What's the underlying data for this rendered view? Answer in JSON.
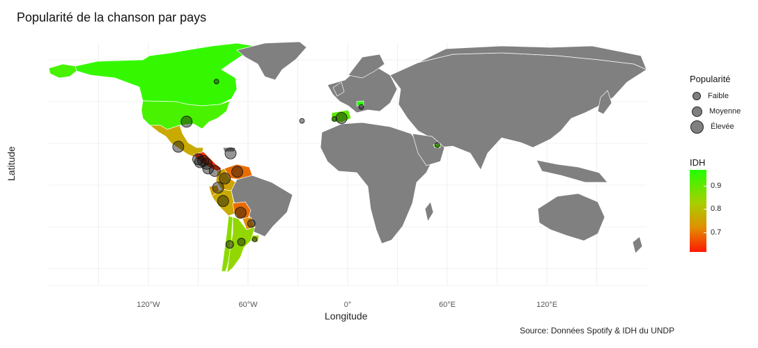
{
  "title": "Popularité de la chanson par pays",
  "x_axis_label": "Longitude",
  "y_axis_label": "Latitude",
  "caption": "Source: Données Spotify & IDH du UNDP",
  "legend_popularity": {
    "title": "Popularité",
    "items": [
      "Faible",
      "Moyenne",
      "Élevée"
    ]
  },
  "legend_idh": {
    "title": "IDH",
    "ticks": [
      "0.9",
      "0.8",
      "0.7"
    ]
  },
  "colors": {
    "land_gray": "#808080",
    "idh_high": "#22ff00",
    "idh_mid": "#a6d000",
    "idh_low": "#ff1800"
  },
  "chart_data": {
    "type": "map",
    "x_ticks": [
      "120°W",
      "60°W",
      "0°",
      "60°E",
      "120°E"
    ],
    "x_tick_values": [
      -120,
      -60,
      0,
      60,
      120
    ],
    "xlim": [
      -180,
      180
    ],
    "ylim": [
      -60,
      85
    ],
    "grid": true,
    "countries": [
      {
        "name": "Canada",
        "idh": 0.94
      },
      {
        "name": "United States",
        "idh": 0.92
      },
      {
        "name": "Mexico",
        "idh": 0.76
      },
      {
        "name": "Guatemala",
        "idh": 0.64
      },
      {
        "name": "Honduras",
        "idh": 0.63
      },
      {
        "name": "Nicaragua",
        "idh": 0.66
      },
      {
        "name": "Costa Rica",
        "idh": 0.81
      },
      {
        "name": "Panama",
        "idh": 0.82
      },
      {
        "name": "Colombia",
        "idh": 0.75
      },
      {
        "name": "Venezuela",
        "idh": 0.69
      },
      {
        "name": "Ecuador",
        "idh": 0.74
      },
      {
        "name": "Peru",
        "idh": 0.76
      },
      {
        "name": "Bolivia",
        "idh": 0.69
      },
      {
        "name": "Paraguay",
        "idh": 0.72
      },
      {
        "name": "Uruguay",
        "idh": 0.83
      },
      {
        "name": "Chile",
        "idh": 0.85
      },
      {
        "name": "Argentina",
        "idh": 0.84
      },
      {
        "name": "Spain",
        "idh": 0.9
      },
      {
        "name": "Switzerland",
        "idh": 0.96
      },
      {
        "name": "United Arab Emirates",
        "idh": 0.91
      }
    ],
    "points": [
      {
        "lon": -97,
        "lat": 38,
        "popularity": "Élevée"
      },
      {
        "lon": -79,
        "lat": 62,
        "popularity": "Faible"
      },
      {
        "lon": -102,
        "lat": 23,
        "popularity": "Élevée"
      },
      {
        "lon": -90,
        "lat": 15.5,
        "popularity": "Élevée"
      },
      {
        "lon": -87,
        "lat": 14.5,
        "popularity": "Élevée"
      },
      {
        "lon": -85,
        "lat": 12.8,
        "popularity": "Élevée"
      },
      {
        "lon": -88.8,
        "lat": 13.7,
        "popularity": "Élevée"
      },
      {
        "lon": -84,
        "lat": 10,
        "popularity": "Élevée"
      },
      {
        "lon": -80,
        "lat": 8.5,
        "popularity": "Élevée"
      },
      {
        "lon": -70.5,
        "lat": 19,
        "popularity": "Élevée"
      },
      {
        "lon": -66.5,
        "lat": 8,
        "popularity": "Élevée"
      },
      {
        "lon": -74,
        "lat": 4,
        "popularity": "Élevée"
      },
      {
        "lon": -78,
        "lat": -1.5,
        "popularity": "Élevée"
      },
      {
        "lon": -75,
        "lat": -9.5,
        "popularity": "Élevée"
      },
      {
        "lon": -64.5,
        "lat": -16.5,
        "popularity": "Élevée"
      },
      {
        "lon": -58,
        "lat": -23,
        "popularity": "Moyenne"
      },
      {
        "lon": -56,
        "lat": -32.5,
        "popularity": "Faible"
      },
      {
        "lon": -64,
        "lat": -34,
        "popularity": "Moyenne"
      },
      {
        "lon": -71,
        "lat": -35.5,
        "popularity": "Moyenne"
      },
      {
        "lon": -3.7,
        "lat": 40.2,
        "popularity": "Élevée"
      },
      {
        "lon": -8,
        "lat": 39.6,
        "popularity": "Faible"
      },
      {
        "lon": -27.5,
        "lat": 38.5,
        "popularity": "Faible"
      },
      {
        "lon": 8.2,
        "lat": 46.8,
        "popularity": "Faible"
      },
      {
        "lon": 54,
        "lat": 24,
        "popularity": "Faible"
      }
    ]
  }
}
